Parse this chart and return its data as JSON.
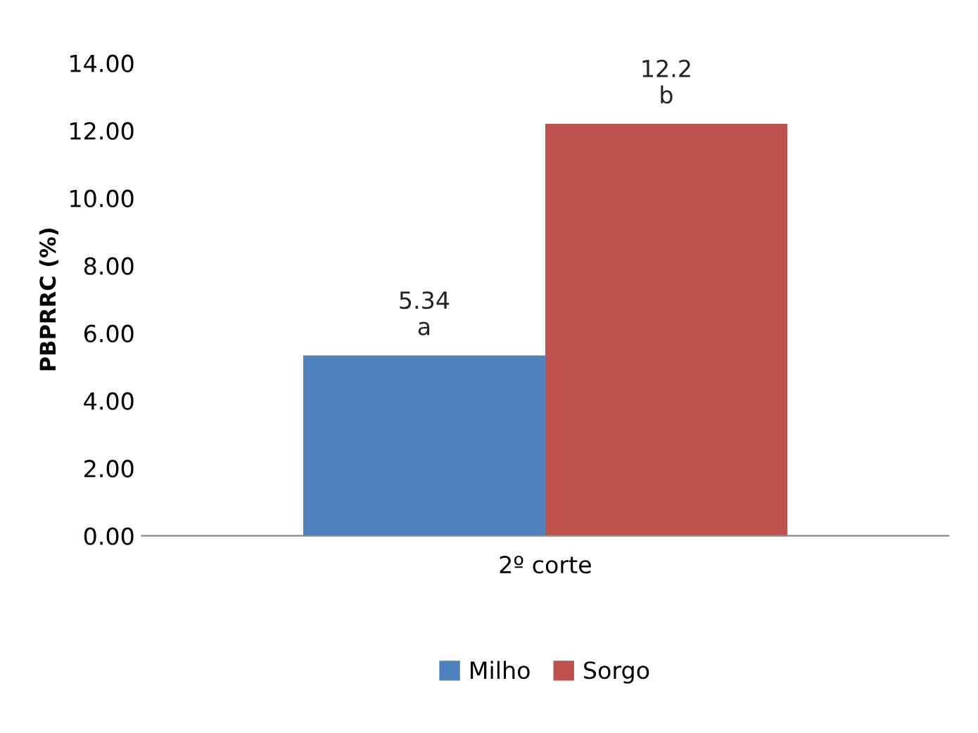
{
  "chart_data": {
    "type": "bar",
    "ylabel": "PBPRRC (%)",
    "categories": [
      "2º corte"
    ],
    "series": [
      {
        "name": "Milho",
        "color": "#4f81bd",
        "values": [
          5.34
        ],
        "value_labels": [
          "5.34\na"
        ]
      },
      {
        "name": "Sorgo",
        "color": "#c0504d",
        "values": [
          12.2
        ],
        "value_labels": [
          "12.2\nb"
        ]
      }
    ],
    "ylim": [
      0,
      14
    ],
    "yticks": [
      {
        "value": 0,
        "label": "0.00"
      },
      {
        "value": 2,
        "label": "2.00"
      },
      {
        "value": 4,
        "label": "4.00"
      },
      {
        "value": 6,
        "label": "6.00"
      },
      {
        "value": 8,
        "label": "8.00"
      },
      {
        "value": 10,
        "label": "10.00"
      },
      {
        "value": 12,
        "label": "12.00"
      },
      {
        "value": 14,
        "label": "14.00"
      }
    ],
    "grid": false,
    "legend": "bottom"
  }
}
